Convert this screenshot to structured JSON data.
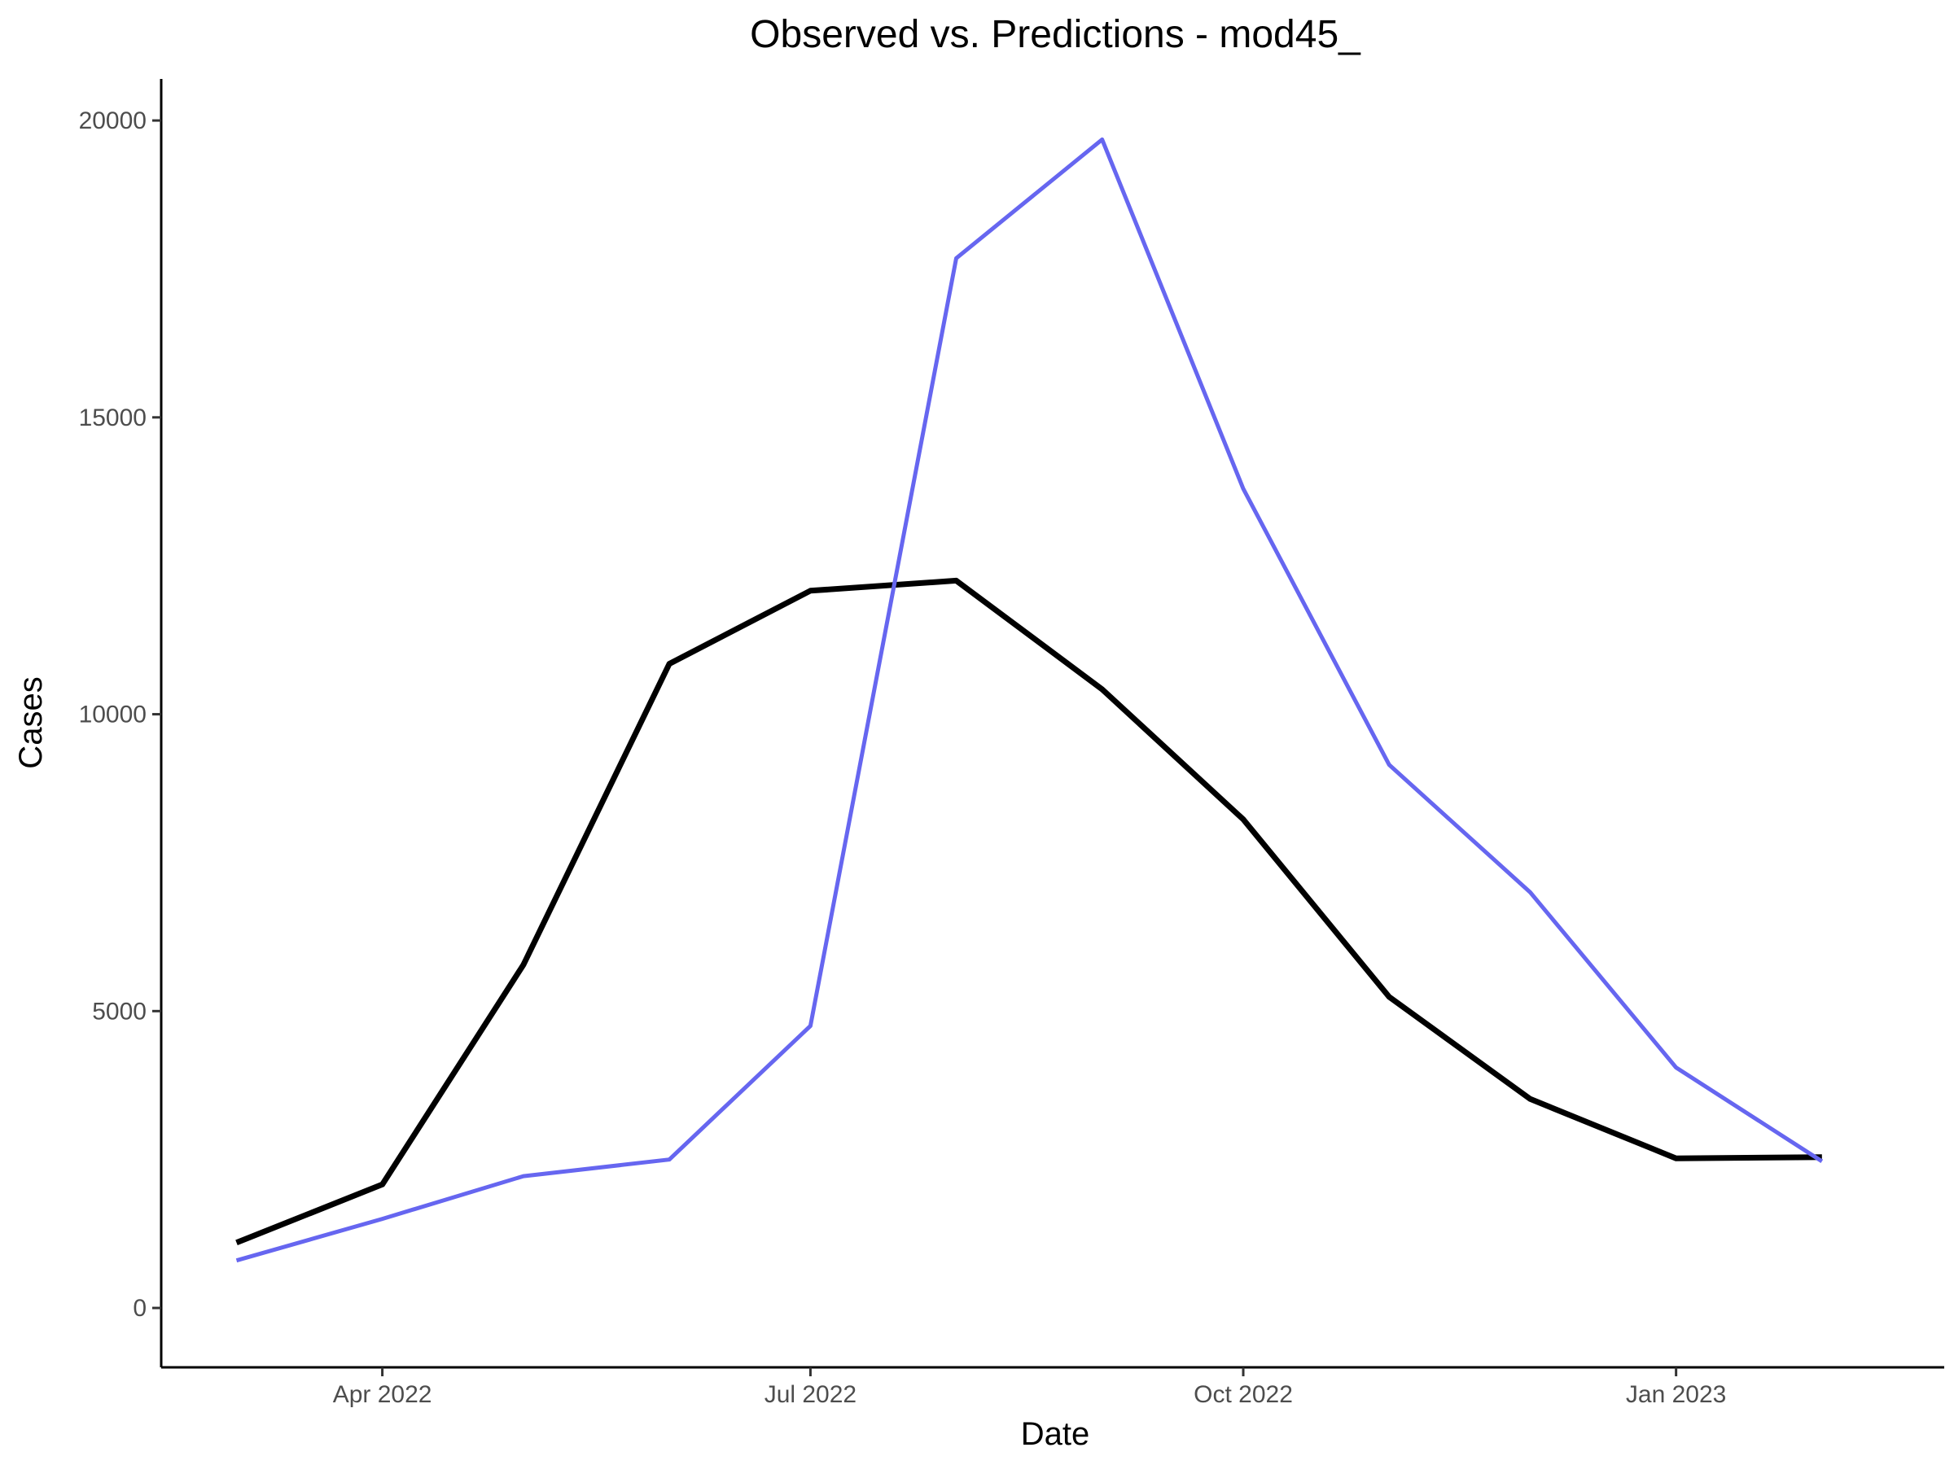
{
  "chart_data": {
    "type": "line",
    "title": "Observed vs. Predictions - mod45_",
    "xlabel": "Date",
    "ylabel": "Cases",
    "x_axis_type": "date",
    "xlim": [
      "2022-02-13",
      "2023-02-27"
    ],
    "ylim": [
      -1000,
      20700
    ],
    "x_ticks": [
      {
        "date": "2022-04-01",
        "label": "Apr 2022"
      },
      {
        "date": "2022-07-01",
        "label": "Jul 2022"
      },
      {
        "date": "2022-10-01",
        "label": "Oct 2022"
      },
      {
        "date": "2023-01-01",
        "label": "Jan 2023"
      }
    ],
    "y_ticks": [
      {
        "value": 0,
        "label": "0"
      },
      {
        "value": 5000,
        "label": "5000"
      },
      {
        "value": 10000,
        "label": "10000"
      },
      {
        "value": 15000,
        "label": "15000"
      },
      {
        "value": 20000,
        "label": "20000"
      }
    ],
    "grid": false,
    "legend": "none",
    "x": [
      "2022-03-01",
      "2022-04-01",
      "2022-05-01",
      "2022-06-01",
      "2022-07-01",
      "2022-08-01",
      "2022-09-01",
      "2022-10-01",
      "2022-11-01",
      "2022-12-01",
      "2023-01-01",
      "2023-02-01"
    ],
    "series": [
      {
        "color": "#000000",
        "values": [
          1100,
          2080,
          5780,
          10850,
          12080,
          12250,
          10420,
          8230,
          5240,
          3520,
          2520,
          2540
        ]
      },
      {
        "color": "#6666f0",
        "values": [
          800,
          1500,
          2220,
          2500,
          4750,
          17680,
          19680,
          13800,
          9150,
          7000,
          4050,
          2470
        ]
      }
    ]
  }
}
